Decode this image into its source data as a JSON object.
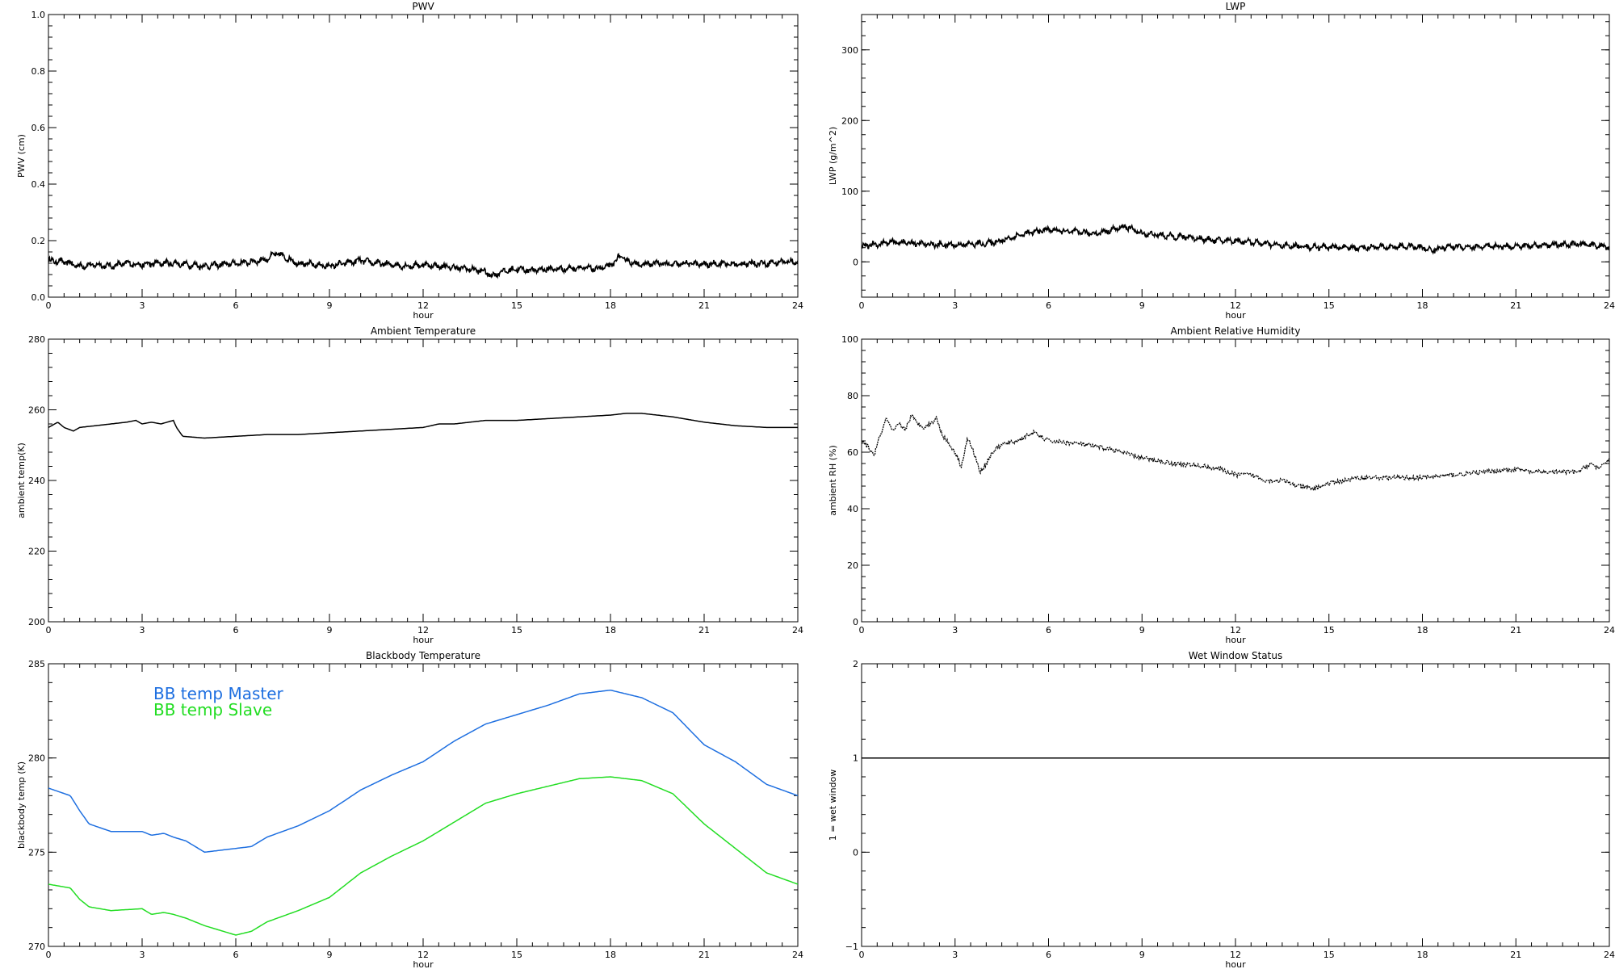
{
  "chart_data": [
    {
      "id": "pwv",
      "type": "line",
      "title": "PWV",
      "xlabel": "hour",
      "ylabel": "PWV (cm)",
      "xlim": [
        0,
        24
      ],
      "ylim": [
        0,
        1
      ],
      "xticks": [
        "0",
        "3",
        "6",
        "9",
        "12",
        "15",
        "18",
        "21",
        "24"
      ],
      "yticks": [
        "0.0",
        "0.2",
        "0.4",
        "0.6",
        "0.8",
        "1.0"
      ],
      "series": [
        {
          "name": "",
          "color": "#000000",
          "style": "noisy",
          "noise": 0.008,
          "x": [
            0,
            0.5,
            1,
            1.5,
            2,
            2.5,
            3,
            3.5,
            4,
            4.5,
            5,
            5.5,
            6,
            6.5,
            7,
            7.3,
            7.6,
            8,
            8.5,
            9,
            9.5,
            10,
            10.5,
            11,
            11.5,
            12,
            12.5,
            13,
            13.5,
            14,
            14.2,
            14.5,
            15,
            15.5,
            16,
            16.5,
            17,
            17.5,
            18,
            18.3,
            18.6,
            19,
            19.5,
            20,
            20.5,
            21,
            21.5,
            22,
            22.5,
            23,
            23.5,
            24
          ],
          "y": [
            0.13,
            0.125,
            0.11,
            0.115,
            0.11,
            0.12,
            0.115,
            0.12,
            0.12,
            0.115,
            0.11,
            0.115,
            0.12,
            0.125,
            0.135,
            0.155,
            0.14,
            0.12,
            0.115,
            0.11,
            0.12,
            0.13,
            0.12,
            0.115,
            0.11,
            0.115,
            0.11,
            0.105,
            0.1,
            0.09,
            0.075,
            0.09,
            0.1,
            0.095,
            0.1,
            0.1,
            0.105,
            0.1,
            0.11,
            0.145,
            0.125,
            0.115,
            0.12,
            0.115,
            0.12,
            0.115,
            0.12,
            0.115,
            0.12,
            0.12,
            0.125,
            0.125
          ]
        }
      ]
    },
    {
      "id": "lwp",
      "type": "line",
      "title": "LWP",
      "xlabel": "hour",
      "ylabel": "LWP (g/m^2)",
      "xlim": [
        0,
        24
      ],
      "ylim": [
        -50,
        350
      ],
      "xticks": [
        "0",
        "3",
        "6",
        "9",
        "12",
        "15",
        "18",
        "21",
        "24"
      ],
      "yticks": [
        "0",
        "100",
        "200",
        "300"
      ],
      "series": [
        {
          "name": "",
          "color": "#000000",
          "style": "noisy",
          "noise": 3,
          "x": [
            0,
            0.5,
            1,
            1.5,
            2,
            2.5,
            3,
            3.5,
            4,
            4.5,
            5,
            5.5,
            6,
            6.5,
            7,
            7.5,
            8,
            8.5,
            9,
            9.5,
            10,
            10.5,
            11,
            11.5,
            12,
            12.5,
            13,
            13.5,
            14,
            14.5,
            15,
            15.5,
            16,
            16.5,
            17,
            17.5,
            18,
            18.3,
            18.6,
            19,
            19.5,
            20,
            20.5,
            21,
            21.5,
            22,
            22.5,
            23,
            23.5,
            24
          ],
          "y": [
            22,
            25,
            28,
            27,
            25,
            24,
            24,
            25,
            26,
            30,
            37,
            42,
            46,
            43,
            42,
            40,
            45,
            50,
            40,
            38,
            36,
            35,
            32,
            30,
            30,
            28,
            25,
            23,
            22,
            21,
            21,
            20,
            20,
            21,
            21,
            22,
            20,
            16,
            20,
            22,
            21,
            21,
            22,
            22,
            23,
            24,
            24,
            25,
            24,
            20
          ]
        }
      ]
    },
    {
      "id": "temp",
      "type": "line",
      "title": "Ambient Temperature",
      "xlabel": "hour",
      "ylabel": "ambient temp(K)",
      "xlim": [
        0,
        24
      ],
      "ylim": [
        200,
        280
      ],
      "xticks": [
        "0",
        "3",
        "6",
        "9",
        "12",
        "15",
        "18",
        "21",
        "24"
      ],
      "yticks": [
        "200",
        "220",
        "240",
        "260",
        "280"
      ],
      "series": [
        {
          "name": "",
          "color": "#000000",
          "style": "line",
          "x": [
            0,
            0.3,
            0.5,
            0.8,
            1,
            1.5,
            2,
            2.5,
            2.8,
            3,
            3.3,
            3.6,
            4,
            4.1,
            4.3,
            5,
            6,
            7,
            8,
            9,
            10,
            11,
            12,
            12.5,
            13,
            14,
            15,
            16,
            17,
            18,
            18.5,
            19,
            19.5,
            20,
            21,
            22,
            23,
            24
          ],
          "y": [
            255,
            256.5,
            255,
            254,
            255,
            255.5,
            256,
            256.5,
            257,
            256,
            256.5,
            256,
            257,
            255,
            252.5,
            252,
            252.5,
            253,
            253,
            253.5,
            254,
            254.5,
            255,
            256,
            256,
            257,
            257,
            257.5,
            258,
            258.5,
            259,
            259,
            258.5,
            258,
            256.5,
            255.5,
            255,
            255
          ]
        }
      ]
    },
    {
      "id": "rh",
      "type": "line",
      "title": "Ambient Relative Humidity",
      "xlabel": "hour",
      "ylabel": "ambient RH (%)",
      "xlim": [
        0,
        24
      ],
      "ylim": [
        0,
        100
      ],
      "xticks": [
        "0",
        "3",
        "6",
        "9",
        "12",
        "15",
        "18",
        "21",
        "24"
      ],
      "yticks": [
        "0",
        "20",
        "40",
        "60",
        "80",
        "100"
      ],
      "series": [
        {
          "name": "",
          "color": "#000000",
          "style": "dotted",
          "x": [
            0,
            0.2,
            0.4,
            0.6,
            0.8,
            1,
            1.2,
            1.4,
            1.6,
            1.8,
            2,
            2.2,
            2.4,
            2.6,
            2.8,
            3,
            3.2,
            3.4,
            3.6,
            3.8,
            4,
            4.2,
            4.4,
            4.6,
            5,
            5.5,
            6,
            7,
            8,
            9,
            10,
            11,
            11.5,
            12,
            12.5,
            13,
            13.5,
            14,
            14.5,
            15,
            16,
            17,
            18,
            19,
            20,
            21,
            21.5,
            22,
            23,
            23.4,
            23.7,
            24
          ],
          "y": [
            64,
            62,
            59,
            66,
            72,
            67,
            70,
            68,
            73,
            70,
            69,
            70,
            72,
            66,
            63,
            60,
            55,
            65,
            60,
            53,
            56,
            60,
            62,
            63,
            64,
            67,
            64,
            63,
            61,
            58,
            56,
            55,
            54,
            52,
            52,
            50,
            50,
            48,
            47,
            49,
            51,
            51,
            51,
            52,
            53,
            54,
            53,
            53,
            53,
            56,
            54,
            58
          ]
        }
      ]
    },
    {
      "id": "bb",
      "type": "line",
      "title": "Blackbody Temperature",
      "xlabel": "hour",
      "ylabel": "blackbody temp (K)",
      "xlim": [
        0,
        24
      ],
      "ylim": [
        270,
        285
      ],
      "xticks": [
        "0",
        "3",
        "6",
        "9",
        "12",
        "15",
        "18",
        "21",
        "24"
      ],
      "yticks": [
        "270",
        "275",
        "280",
        "285"
      ],
      "legend_position": "top-left",
      "series": [
        {
          "name": "BB temp Master",
          "color": "#1e6fe0",
          "style": "line",
          "x": [
            0,
            0.7,
            1,
            1.3,
            2,
            3,
            3.3,
            3.7,
            4,
            4.4,
            5,
            6,
            6.5,
            7,
            8,
            9,
            10,
            11,
            12,
            13,
            14,
            15,
            16,
            17,
            18,
            19,
            20,
            21,
            22,
            23,
            24
          ],
          "y": [
            278.4,
            278,
            277.2,
            276.5,
            276.1,
            276.1,
            275.9,
            276,
            275.8,
            275.6,
            275,
            275.2,
            275.3,
            275.8,
            276.4,
            277.2,
            278.3,
            279.1,
            279.8,
            280.9,
            281.8,
            282.3,
            282.8,
            283.4,
            283.6,
            283.2,
            282.4,
            280.7,
            279.8,
            278.6,
            278
          ]
        },
        {
          "name": "BB temp Slave",
          "color": "#22dd22",
          "style": "line",
          "x": [
            0,
            0.7,
            1,
            1.3,
            2,
            3,
            3.3,
            3.7,
            4,
            4.4,
            5,
            6,
            6.5,
            7,
            8,
            9,
            10,
            11,
            12,
            13,
            14,
            15,
            16,
            17,
            18,
            19,
            20,
            21,
            22,
            23,
            24
          ],
          "y": [
            273.3,
            273.1,
            272.5,
            272.1,
            271.9,
            272,
            271.7,
            271.8,
            271.7,
            271.5,
            271.1,
            270.6,
            270.8,
            271.3,
            271.9,
            272.6,
            273.9,
            274.8,
            275.6,
            276.6,
            277.6,
            278.1,
            278.5,
            278.9,
            279,
            278.8,
            278.1,
            276.5,
            275.2,
            273.9,
            273.3
          ]
        }
      ]
    },
    {
      "id": "wet",
      "type": "line",
      "title": "Wet Window Status",
      "xlabel": "hour",
      "ylabel": "1 = wet window",
      "xlim": [
        0,
        24
      ],
      "ylim": [
        -1,
        2
      ],
      "xticks": [
        "0",
        "3",
        "6",
        "9",
        "12",
        "15",
        "18",
        "21",
        "24"
      ],
      "yticks": [
        "−1",
        "0",
        "1",
        "2"
      ],
      "series": [
        {
          "name": "",
          "color": "#000000",
          "style": "line",
          "x": [
            0,
            24
          ],
          "y": [
            1,
            1
          ]
        }
      ]
    }
  ]
}
